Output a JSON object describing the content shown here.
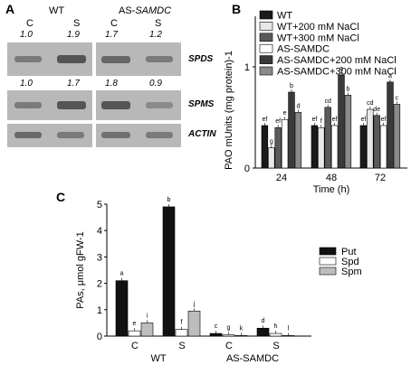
{
  "panelA": {
    "letter": "A",
    "wt_label": "WT",
    "as_label_prefix": "AS-",
    "as_label_gene": "SAMDC",
    "lane_labels": [
      "C",
      "S",
      "C",
      "S"
    ],
    "spds_values": [
      "1.0",
      "1.9",
      "1.7",
      "1.2"
    ],
    "spms_values": [
      "1.0",
      "1.7",
      "1.8",
      "0.9"
    ],
    "gene_labels": [
      "SPDS",
      "SPMS",
      "ACTIN"
    ]
  },
  "panelB": {
    "letter": "B",
    "colors": {
      "dark": "#1a1a1a",
      "light": "#e8e8e8",
      "mid": "#5a5a5a",
      "white": "#ffffff",
      "dark2": "#3a3a3a",
      "gray": "#8a8a8a"
    }
  },
  "panelC": {
    "letter": "C"
  },
  "chart_data": [
    {
      "type": "bar",
      "title": "",
      "xlabel": "Time (h)",
      "ylabel": "PAO mUnits (mg protein)-1",
      "ylim": [
        0,
        1.5
      ],
      "yticks": [
        "0",
        "1"
      ],
      "categories": [
        "24",
        "48",
        "72"
      ],
      "series": [
        {
          "name": "WT",
          "values": [
            0.42,
            0.42,
            0.42
          ],
          "letters": [
            "ef",
            "ef",
            "ef"
          ]
        },
        {
          "name": "WT+200 mM NaCl",
          "values": [
            0.2,
            0.4,
            0.58
          ],
          "letters": [
            "g",
            "f",
            "cd"
          ]
        },
        {
          "name": "WT+300 mM NaCl",
          "values": [
            0.4,
            0.6,
            0.52
          ],
          "letters": [
            "ef",
            "cd",
            "de"
          ]
        },
        {
          "name": "AS-SAMDC",
          "values": [
            0.48,
            0.42,
            0.42
          ],
          "letters": [
            "e",
            "ef",
            "ef"
          ]
        },
        {
          "name": "AS-SAMDC+200 mM NaCl",
          "values": [
            0.75,
            0.92,
            0.85
          ],
          "letters": [
            "b",
            "a",
            "a"
          ]
        },
        {
          "name": "AS-SAMDC+300 mM NaCl",
          "values": [
            0.55,
            0.72,
            0.63
          ],
          "letters": [
            "d",
            "b",
            "c"
          ]
        }
      ]
    },
    {
      "type": "bar",
      "title": "",
      "xlabel": "",
      "ylabel": "PAs, μmol gFW-1",
      "ylim": [
        0,
        5
      ],
      "yticks": [
        "0",
        "1",
        "2",
        "3",
        "4",
        "5"
      ],
      "categories": [
        "C",
        "S",
        "C",
        "S"
      ],
      "group_labels": [
        "WT",
        "AS-SAMDC"
      ],
      "series": [
        {
          "name": "Put",
          "values": [
            2.1,
            4.9,
            0.1,
            0.3
          ],
          "letters": [
            "a",
            "b",
            "c",
            "d"
          ]
        },
        {
          "name": "Spd",
          "values": [
            0.2,
            0.25,
            0.05,
            0.1
          ],
          "letters": [
            "e",
            "f",
            "g",
            "h"
          ]
        },
        {
          "name": "Spm",
          "values": [
            0.5,
            0.95,
            0.02,
            0.02
          ],
          "letters": [
            "i",
            "j",
            "k",
            "l"
          ]
        }
      ]
    }
  ]
}
